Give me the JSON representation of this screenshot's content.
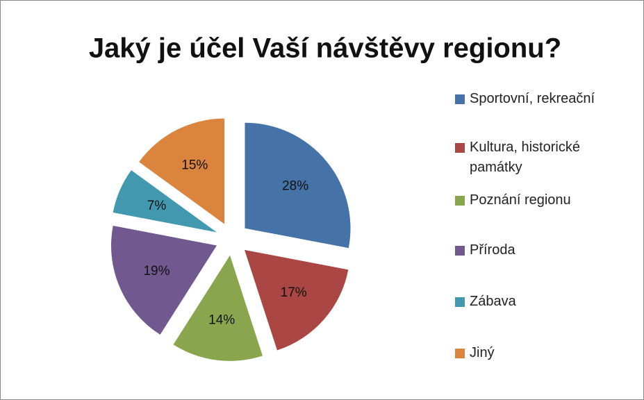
{
  "chart_data": {
    "type": "pie",
    "title": "Jaký je účel Vaší návštěvy regionu?",
    "categories": [
      "Sportovní, rekreační",
      "Kultura, historické památky",
      "Poznání regionu",
      "Příroda",
      "Zábava",
      "Jiný"
    ],
    "values": [
      28,
      17,
      14,
      19,
      7,
      15
    ],
    "value_labels": [
      "28%",
      "17%",
      "14%",
      "19%",
      "7%",
      "15%"
    ],
    "colors": [
      "#4572a7",
      "#aa4643",
      "#89a54e",
      "#71588f",
      "#4198af",
      "#db843d"
    ],
    "legend": "right"
  }
}
